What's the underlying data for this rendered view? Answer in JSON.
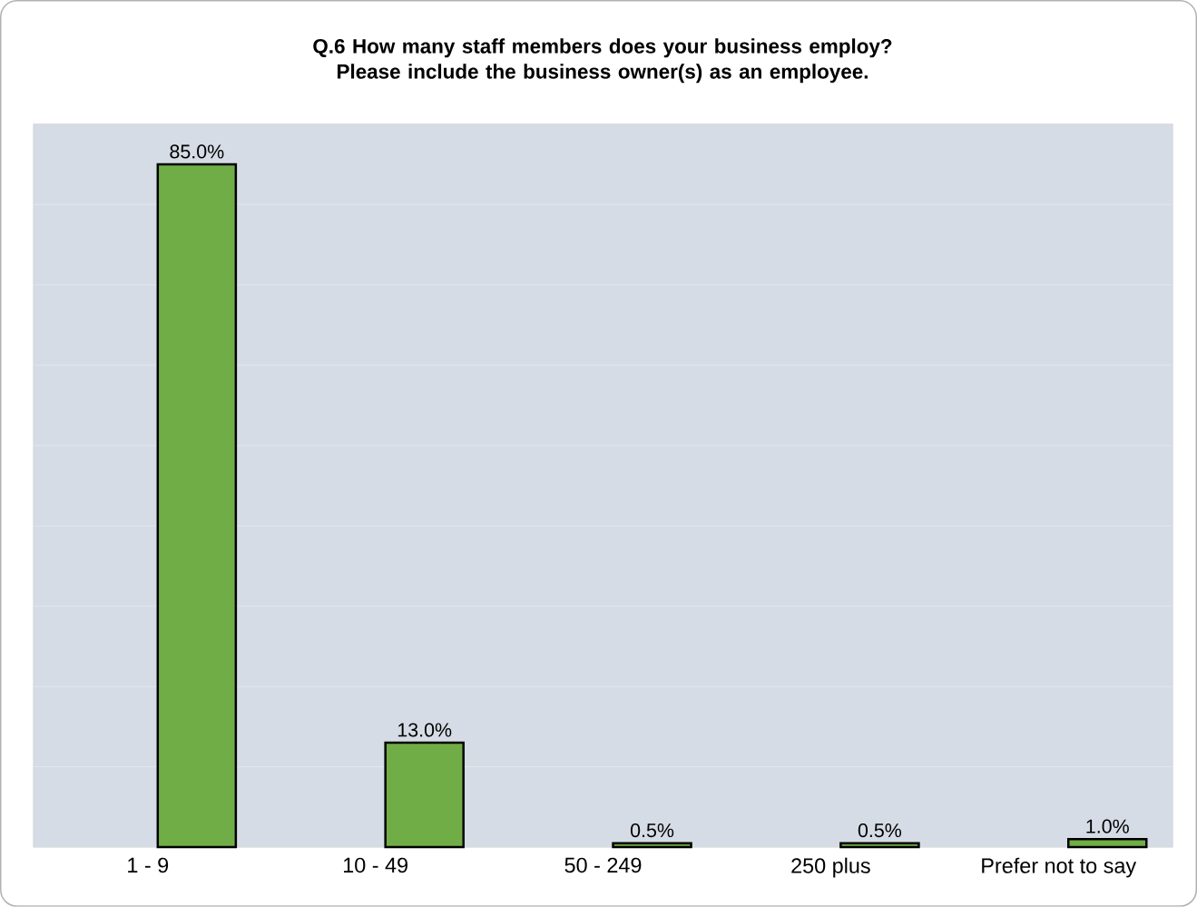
{
  "chart_data": {
    "type": "bar",
    "title": "Q.6 How many staff members does your business employ? Please include the business owner(s) as an employee.",
    "categories": [
      "1 - 9",
      "10 - 49",
      "50 - 249",
      "250 plus",
      "Prefer not to say"
    ],
    "values": [
      85.0,
      13.0,
      0.5,
      0.5,
      1.0
    ],
    "value_labels": [
      "85.0%",
      "13.0%",
      "0.5%",
      "0.5%",
      "1.0%"
    ],
    "color": "#70ad47",
    "ylim": [
      0,
      90
    ],
    "yticks": [
      {
        "value": 0,
        "label": null
      },
      {
        "value": 10,
        "label": null
      },
      {
        "value": 20,
        "label": null
      },
      {
        "value": 30,
        "label": null
      },
      {
        "value": 40,
        "label": null
      },
      {
        "value": 50,
        "label": null
      },
      {
        "value": 60,
        "label": null
      },
      {
        "value": 70,
        "label": null
      },
      {
        "value": 80,
        "label": null
      },
      {
        "value": 90,
        "label": null
      }
    ],
    "tick_labels": "x",
    "grid": "y"
  }
}
